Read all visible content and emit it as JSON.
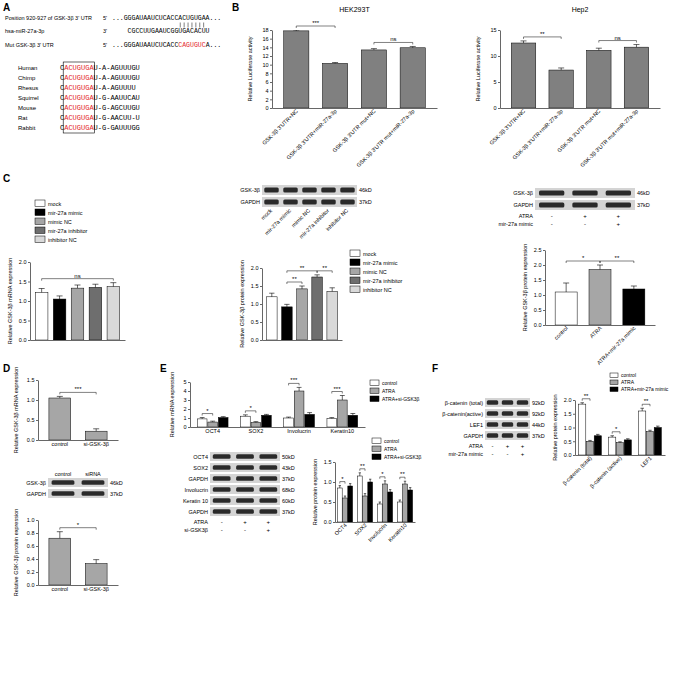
{
  "panels": [
    "A",
    "B",
    "C",
    "D",
    "E",
    "F"
  ],
  "sequence": {
    "color": "#e3262b",
    "rows": [
      {
        "label": "Position 920-927 of GSK-3β 3' UTR",
        "end": "5'",
        "segments": [
          {
            "text": "...GGGAUAAUCUCACCACUGUGAA..."
          }
        ]
      },
      {
        "label": "hsa-miR-27a-3p",
        "end": "3'",
        "segments": [
          {
            "text": "CGCCUUGAAUCGGUGACACUU"
          }
        ]
      },
      {
        "label": "Mut GSK-3β 3' UTR",
        "end": "5'",
        "segments": [
          {
            "text": "...GGGAUAAUCUCACC"
          },
          {
            "text": "CAGUGUC",
            "highlight": true
          },
          {
            "text": "A..."
          }
        ]
      }
    ]
  },
  "alignment": {
    "rows": [
      {
        "species": "Human",
        "prefix": "C",
        "seed": "ACUGUGA",
        "suffix": "U-A-AGUUUGU"
      },
      {
        "species": "Chimp",
        "prefix": "C",
        "seed": "ACUGUGA",
        "suffix": "U-A-AGUUUGU"
      },
      {
        "species": "Rhesus",
        "prefix": "C",
        "seed": "ACUGUGA",
        "suffix": "U-A-AGUUUU"
      },
      {
        "species": "Squirrel",
        "prefix": "C",
        "seed": "ACUGUGA",
        "suffix": "U-G-AAUUCAU"
      },
      {
        "species": "Mouse",
        "prefix": "C",
        "seed": "ACUGUGA",
        "suffix": "U-G-AGCUUGU"
      },
      {
        "species": "Rat",
        "prefix": "C",
        "seed": "ACUGUGA",
        "suffix": "U-G-AACUU-U"
      },
      {
        "species": "Rabbit",
        "prefix": "C",
        "seed": "ACUGUGA",
        "suffix": "U-G-GAUUUGG"
      }
    ]
  },
  "blots": [
    {
      "rows": [
        {
          "label": "GSK-3β",
          "kd": "46kD"
        },
        {
          "label": "GAPDH",
          "kd": "37kD"
        }
      ],
      "lanes": [
        "mock",
        "mir-27a mimic",
        "mimic NC",
        "mir-27a inhibitor",
        "inhibitor NC"
      ]
    },
    {
      "rows": [
        {
          "label": "GSK-3β",
          "kd": "46kD"
        },
        {
          "label": "GAPDH",
          "kd": "37kD"
        }
      ],
      "conditions": [
        {
          "label": "ATRA",
          "signs": [
            "-",
            "+",
            "+"
          ]
        },
        {
          "label": "mir-27a mimic",
          "signs": [
            "-",
            "-",
            "+"
          ]
        }
      ]
    },
    {
      "rows": [
        {
          "label": "GSK-3β",
          "kd": "46kD"
        },
        {
          "label": "GAPDH",
          "kd": "37kD"
        }
      ],
      "lanes": [
        "control",
        "siRNA"
      ]
    },
    {
      "rows": [
        {
          "label": "OCT4",
          "kd": "50kD"
        },
        {
          "label": "SOX2",
          "kd": "43kD"
        },
        {
          "label": "GAPDH",
          "kd": "37kD"
        },
        {
          "label": "Involucrin",
          "kd": "68kD"
        },
        {
          "label": "Keratin 10",
          "kd": "60kD"
        },
        {
          "label": "GAPDH",
          "kd": "37kD"
        }
      ],
      "conditions": [
        {
          "label": "ATRA",
          "signs": [
            "-",
            "+",
            "+"
          ]
        },
        {
          "label": "si-GSK3β",
          "signs": [
            "-",
            "-",
            "+"
          ]
        }
      ]
    },
    {
      "rows": [
        {
          "label": "β-catenin (total)",
          "kd": "92kD"
        },
        {
          "label": "β-catenin(active)",
          "kd": "92kD"
        },
        {
          "label": "LEF1",
          "kd": "44kD"
        },
        {
          "label": "GAPDH",
          "kd": "37kD"
        }
      ],
      "conditions": [
        {
          "label": "ATRA",
          "signs": [
            "-",
            "+",
            "+"
          ]
        },
        {
          "label": "mir-27a mimic",
          "signs": [
            "-",
            "-",
            "+"
          ]
        }
      ]
    }
  ],
  "chart_data": [
    {
      "type": "bar",
      "title": "HEK293T",
      "y_label": "Relative Luciferase activity",
      "categories": [
        "GSK-3β 3'UTR+NC",
        "GSK-3β 3'UTR+miR-27a-3p",
        "GSK-3β 3'UTR mut+NC",
        "GSK-3β 3'UTR mut+miR-27a-3p"
      ],
      "values": [
        17.8,
        10.3,
        13.4,
        13.9
      ],
      "errors": [
        0.2,
        0.2,
        0.3,
        0.3
      ],
      "color": "#808080",
      "ylim": [
        0,
        18
      ],
      "yticks": [
        0,
        2,
        4,
        6,
        8,
        10,
        12,
        14,
        16,
        18
      ],
      "annotations": [
        {
          "text": "***",
          "between": [
            0,
            1
          ]
        },
        {
          "text": "ns",
          "between": [
            2,
            3
          ]
        }
      ]
    },
    {
      "type": "bar",
      "title": "Hep2",
      "y_label": "Relative Luciferase activity",
      "categories": [
        "GSK-3β 3'UTR+NC",
        "GSK-3β 3'UTR+miR-27a-3p",
        "GSK-3β 3'UTR mut+NC",
        "GSK-3β 3'UTR mut+miR-27a-3p"
      ],
      "values": [
        12.5,
        7.3,
        11.1,
        11.7
      ],
      "errors": [
        0.4,
        0.4,
        0.4,
        0.5
      ],
      "color": "#808080",
      "ylim": [
        0,
        15
      ],
      "yticks": [
        0,
        5,
        10,
        15
      ],
      "annotations": [
        {
          "text": "**",
          "between": [
            0,
            1
          ]
        },
        {
          "text": "ns",
          "between": [
            2,
            3
          ]
        }
      ]
    },
    {
      "type": "bar",
      "y_label": "Relative GSK-3β mRNA expression",
      "categories": [
        "mock",
        "mir-27a mimic",
        "mimic NC",
        "mir-27a inhibitor",
        "inhibitor NC"
      ],
      "values": [
        1.22,
        1.05,
        1.33,
        1.35,
        1.37
      ],
      "errors": [
        0.1,
        0.08,
        0.08,
        0.08,
        0.1
      ],
      "colors": [
        "#ffffff",
        "#000000",
        "#a6a6a6",
        "#6e6e6e",
        "#d9d9d9"
      ],
      "ylim": [
        0,
        2
      ],
      "yticks": [
        {
          "value": 0,
          "label": "0.0"
        },
        {
          "value": 0.5,
          "label": "0.5"
        },
        {
          "value": 1,
          "label": "1.0"
        },
        {
          "value": 1.5,
          "label": "1.5"
        },
        {
          "value": 2,
          "label": "2.0"
        }
      ],
      "tick_labels": "y",
      "legend": "left",
      "annotations": [
        {
          "text": "ns",
          "between": [
            0,
            4
          ]
        }
      ]
    },
    {
      "type": "bar",
      "y_label": "Relative GSK-3β protein expression",
      "categories": [
        "mock",
        "mir-27a mimic",
        "mimic NC",
        "mir-27a inhibitor",
        "inhibitor NC"
      ],
      "values": [
        1.2,
        0.92,
        1.42,
        1.75,
        1.35
      ],
      "errors": [
        0.1,
        0.07,
        0.08,
        0.06,
        0.1
      ],
      "colors": [
        "#ffffff",
        "#000000",
        "#a6a6a6",
        "#6e6e6e",
        "#d9d9d9"
      ],
      "ylim": [
        0,
        2
      ],
      "yticks": [
        {
          "value": 0,
          "label": "0.0"
        },
        {
          "value": 0.5,
          "label": "0.5"
        },
        {
          "value": 1,
          "label": "1.0"
        },
        {
          "value": 1.5,
          "label": "1.5"
        },
        {
          "value": 2,
          "label": "2.0"
        }
      ],
      "tick_labels": "y",
      "legend": "right",
      "annotations": [
        {
          "text": "**",
          "between": [
            1,
            2
          ]
        },
        {
          "text": "**",
          "between": [
            1,
            3
          ]
        },
        {
          "text": "**",
          "between": [
            3,
            4
          ]
        }
      ]
    },
    {
      "type": "bar",
      "y_label": "Relative GSK-3β protein expression",
      "categories": [
        "control",
        "ATRA",
        "ATRA+mir-27a mimic"
      ],
      "values": [
        1.1,
        1.85,
        1.2
      ],
      "errors": [
        0.3,
        0.15,
        0.1
      ],
      "colors": [
        "#ffffff",
        "#a6a6a6",
        "#000000"
      ],
      "ylim": [
        0,
        2.5
      ],
      "yticks": [
        {
          "value": 0,
          "label": "0.0"
        },
        {
          "value": 0.5,
          "label": "0.5"
        },
        {
          "value": 1,
          "label": "1.0"
        },
        {
          "value": 1.5,
          "label": "1.5"
        },
        {
          "value": 2,
          "label": "2.0"
        },
        {
          "value": 2.5,
          "label": "2.5"
        }
      ],
      "annotations": [
        {
          "text": "*",
          "between": [
            0,
            1
          ]
        },
        {
          "text": "**",
          "between": [
            1,
            2
          ]
        }
      ]
    },
    {
      "type": "bar",
      "y_label": "Relative GSK-3β mRNA expression",
      "categories": [
        "control",
        "si-GSK-3β"
      ],
      "values": [
        1.05,
        0.22
      ],
      "errors": [
        0.04,
        0.06
      ],
      "color": "#a6a6a6",
      "ylim": [
        0,
        1.5
      ],
      "yticks": [
        {
          "value": 0,
          "label": "0.0"
        },
        {
          "value": 0.5,
          "label": "0.5"
        },
        {
          "value": 1,
          "label": "1.0"
        },
        {
          "value": 1.5,
          "label": "1.5"
        }
      ],
      "annotations": [
        {
          "text": "***",
          "between": [
            0,
            1
          ]
        }
      ]
    },
    {
      "type": "bar",
      "y_label": "Relative GSK-3β protein expression",
      "categories": [
        "control",
        "si-GSK-3β"
      ],
      "values": [
        0.72,
        0.33
      ],
      "errors": [
        0.1,
        0.06
      ],
      "color": "#a6a6a6",
      "ylim": [
        0,
        1
      ],
      "yticks": [
        {
          "value": 0,
          "label": "0.0"
        },
        {
          "value": 0.2,
          "label": "0.2"
        },
        {
          "value": 0.4,
          "label": "0.4"
        },
        {
          "value": 0.6,
          "label": "0.6"
        },
        {
          "value": 0.8,
          "label": "0.8"
        },
        {
          "value": 1,
          "label": "1.0"
        }
      ],
      "annotations": [
        {
          "text": "*",
          "between": [
            0,
            1
          ]
        }
      ]
    },
    {
      "type": "bar",
      "y_label": "Relative mRNA expression",
      "categories": [
        "OCT4",
        "SOX2",
        "Involucrin",
        "Keratin10"
      ],
      "series": [
        {
          "name": "control",
          "color": "#ffffff",
          "values": [
            0.9,
            1.2,
            1.0,
            0.95
          ],
          "errors": [
            0.15,
            0.15,
            0.1,
            0.1
          ]
        },
        {
          "name": "ATRA",
          "color": "#a6a6a6",
          "values": [
            0.55,
            0.5,
            4.0,
            3.0
          ],
          "errors": [
            0.1,
            0.1,
            0.4,
            0.5
          ]
        },
        {
          "name": "ATRA+si-GSK3β",
          "color": "#000000",
          "values": [
            1.05,
            1.3,
            1.4,
            1.3
          ],
          "errors": [
            0.1,
            0.1,
            0.2,
            0.2
          ]
        }
      ],
      "ylim": [
        0,
        5
      ],
      "yticks": [
        0,
        1,
        2,
        3,
        4,
        5
      ],
      "legend": "right",
      "annotations": [
        {
          "text": "*",
          "category": 0,
          "between": [
            0,
            1
          ]
        },
        {
          "text": "*",
          "category": 1,
          "between": [
            0,
            1
          ]
        },
        {
          "text": "***",
          "category": 2,
          "between": [
            0,
            1
          ]
        },
        {
          "text": "***",
          "category": 3,
          "between": [
            0,
            1
          ]
        }
      ]
    },
    {
      "type": "bar",
      "y_label": "Relative protein expression",
      "categories": [
        "OCT4",
        "SOX2",
        "Involucrin",
        "Keratin10"
      ],
      "series": [
        {
          "name": "control",
          "color": "#ffffff",
          "values": [
            0.85,
            1.15,
            0.45,
            0.5
          ],
          "errors": [
            0.06,
            0.08,
            0.05,
            0.05
          ]
        },
        {
          "name": "ATRA",
          "color": "#a6a6a6",
          "values": [
            0.6,
            0.65,
            0.95,
            0.95
          ],
          "errors": [
            0.05,
            0.06,
            0.08,
            0.07
          ]
        },
        {
          "name": "ATRA+si-GSK3β",
          "color": "#000000",
          "values": [
            0.9,
            1.0,
            0.75,
            0.8
          ],
          "errors": [
            0.06,
            0.07,
            0.06,
            0.06
          ]
        }
      ],
      "ylim": [
        0,
        1.5
      ],
      "yticks": [
        {
          "value": 0,
          "label": "0.0"
        },
        {
          "value": 0.5,
          "label": "0.5"
        },
        {
          "value": 1,
          "label": "1.0"
        },
        {
          "value": 1.5,
          "label": "1.5"
        }
      ],
      "legend": "right",
      "annotations": [
        {
          "text": "*",
          "category": 0,
          "between": [
            0,
            1
          ]
        },
        {
          "text": "**",
          "category": 1,
          "between": [
            0,
            1
          ]
        },
        {
          "text": "*",
          "category": 2,
          "between": [
            0,
            1
          ]
        },
        {
          "text": "**",
          "category": 3,
          "between": [
            0,
            1
          ]
        }
      ]
    },
    {
      "type": "bar",
      "y_label": "Relative protein expression",
      "categories": [
        "β-catenin (total)",
        "β-catenin (active)",
        "LEF1"
      ],
      "series": [
        {
          "name": "control",
          "color": "#ffffff",
          "values": [
            1.85,
            0.65,
            1.6
          ],
          "errors": [
            0.05,
            0.05,
            0.1
          ]
        },
        {
          "name": "ATRA",
          "color": "#a6a6a6",
          "values": [
            0.5,
            0.45,
            0.85
          ],
          "errors": [
            0.03,
            0.03,
            0.05
          ]
        },
        {
          "name": "ATRA+mir-27a mimic",
          "color": "#000000",
          "values": [
            0.7,
            0.55,
            1.0
          ],
          "errors": [
            0.05,
            0.04,
            0.05
          ]
        }
      ],
      "ylim": [
        0,
        2
      ],
      "yticks": [
        {
          "value": 0,
          "label": "0.0"
        },
        {
          "value": 0.5,
          "label": "0.5"
        },
        {
          "value": 1,
          "label": "1.0"
        },
        {
          "value": 1.5,
          "label": "1.5"
        },
        {
          "value": 2,
          "label": "2.0"
        }
      ],
      "legend": "right",
      "annotations": [
        {
          "text": "**",
          "category": 0,
          "between": [
            0,
            1
          ]
        },
        {
          "text": "*",
          "category": 1,
          "between": [
            0,
            1
          ]
        },
        {
          "text": "**",
          "category": 2,
          "between": [
            0,
            1
          ]
        }
      ]
    }
  ]
}
